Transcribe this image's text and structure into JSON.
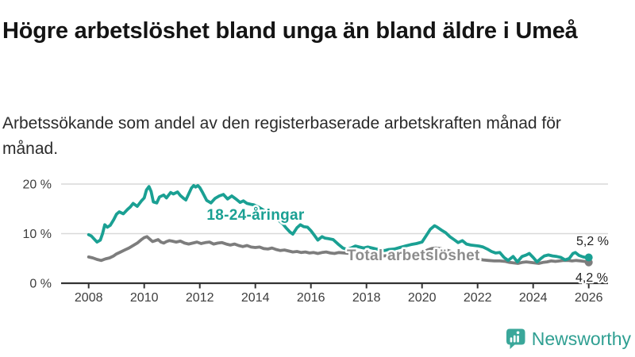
{
  "chart_data": {
    "type": "line",
    "title": "Högre arbetslöshet bland unga än bland äldre i Umeå",
    "subtitle": "Arbetssökande som andel av den registerbaserade arbetskraften månad för månad.",
    "unit": "percent",
    "grid": true,
    "legend_position": "inline-labels-on-lines",
    "x_axis": {
      "min": 2007.05,
      "max": 2026.6,
      "ticks": [
        2008,
        2010,
        2012,
        2014,
        2016,
        2018,
        2020,
        2022,
        2024,
        2026
      ]
    },
    "y_axis": {
      "min": 0,
      "max": 21.5,
      "ticks": [
        {
          "value": 20,
          "label": "20 %"
        },
        {
          "value": 10,
          "label": "10 %"
        },
        {
          "value": 0,
          "label": "0 %"
        }
      ]
    },
    "series": [
      {
        "id": "youth",
        "name": "18-24-åringar",
        "color": "#1aa093",
        "label_color": "#1aa093",
        "end_label": "5,2 %",
        "end_value": 5.2,
        "points": [
          [
            2008.0,
            9.8
          ],
          [
            2008.1,
            9.5
          ],
          [
            2008.2,
            8.9
          ],
          [
            2008.3,
            8.3
          ],
          [
            2008.42,
            8.7
          ],
          [
            2008.5,
            10.0
          ],
          [
            2008.58,
            11.8
          ],
          [
            2008.67,
            11.3
          ],
          [
            2008.78,
            11.7
          ],
          [
            2008.9,
            12.8
          ],
          [
            2009.0,
            13.9
          ],
          [
            2009.1,
            14.4
          ],
          [
            2009.25,
            14.0
          ],
          [
            2009.4,
            14.9
          ],
          [
            2009.5,
            15.4
          ],
          [
            2009.6,
            16.1
          ],
          [
            2009.75,
            15.5
          ],
          [
            2009.9,
            16.6
          ],
          [
            2010.0,
            17.2
          ],
          [
            2010.08,
            18.8
          ],
          [
            2010.17,
            19.5
          ],
          [
            2010.25,
            18.5
          ],
          [
            2010.33,
            16.4
          ],
          [
            2010.45,
            16.2
          ],
          [
            2010.55,
            17.4
          ],
          [
            2010.7,
            17.8
          ],
          [
            2010.8,
            17.2
          ],
          [
            2010.95,
            18.3
          ],
          [
            2011.05,
            18.0
          ],
          [
            2011.2,
            18.4
          ],
          [
            2011.3,
            17.7
          ],
          [
            2011.42,
            17.1
          ],
          [
            2011.5,
            16.8
          ],
          [
            2011.6,
            18.0
          ],
          [
            2011.7,
            19.2
          ],
          [
            2011.78,
            19.7
          ],
          [
            2011.85,
            19.4
          ],
          [
            2011.93,
            19.7
          ],
          [
            2012.0,
            19.3
          ],
          [
            2012.1,
            18.3
          ],
          [
            2012.25,
            16.7
          ],
          [
            2012.4,
            16.2
          ],
          [
            2012.55,
            17.1
          ],
          [
            2012.7,
            17.6
          ],
          [
            2012.85,
            17.9
          ],
          [
            2013.0,
            17.0
          ],
          [
            2013.15,
            17.6
          ],
          [
            2013.3,
            17.0
          ],
          [
            2013.45,
            16.3
          ],
          [
            2013.57,
            16.6
          ],
          [
            2013.7,
            16.1
          ],
          [
            2013.85,
            15.9
          ],
          [
            2013.95,
            15.8
          ],
          [
            2014.1,
            15.4
          ],
          [
            2014.25,
            14.9
          ],
          [
            2014.4,
            14.3
          ],
          [
            2014.52,
            13.9
          ],
          [
            2014.7,
            13.2
          ],
          [
            2014.86,
            12.6
          ],
          [
            2015.0,
            11.9
          ],
          [
            2015.1,
            11.2
          ],
          [
            2015.25,
            10.3
          ],
          [
            2015.35,
            9.9
          ],
          [
            2015.5,
            11.2
          ],
          [
            2015.62,
            11.8
          ],
          [
            2015.75,
            11.4
          ],
          [
            2015.88,
            11.3
          ],
          [
            2016.0,
            10.6
          ],
          [
            2016.12,
            9.7
          ],
          [
            2016.25,
            8.7
          ],
          [
            2016.4,
            9.4
          ],
          [
            2016.5,
            9.1
          ],
          [
            2016.62,
            9.0
          ],
          [
            2016.8,
            8.8
          ],
          [
            2017.0,
            7.8
          ],
          [
            2017.15,
            7.1
          ],
          [
            2017.3,
            6.8
          ],
          [
            2017.45,
            7.1
          ],
          [
            2017.6,
            7.5
          ],
          [
            2017.75,
            7.3
          ],
          [
            2017.9,
            7.1
          ],
          [
            2018.05,
            7.3
          ],
          [
            2018.2,
            7.1
          ],
          [
            2018.35,
            6.9
          ],
          [
            2018.5,
            6.7
          ],
          [
            2018.65,
            6.6
          ],
          [
            2018.8,
            6.8
          ],
          [
            2019.0,
            6.9
          ],
          [
            2019.2,
            7.2
          ],
          [
            2019.4,
            7.5
          ],
          [
            2019.6,
            7.8
          ],
          [
            2019.8,
            8.0
          ],
          [
            2020.0,
            8.3
          ],
          [
            2020.15,
            9.6
          ],
          [
            2020.3,
            10.9
          ],
          [
            2020.45,
            11.6
          ],
          [
            2020.55,
            11.3
          ],
          [
            2020.7,
            10.7
          ],
          [
            2020.85,
            10.2
          ],
          [
            2021.0,
            9.4
          ],
          [
            2021.15,
            8.8
          ],
          [
            2021.3,
            8.2
          ],
          [
            2021.45,
            8.6
          ],
          [
            2021.6,
            7.9
          ],
          [
            2021.75,
            7.7
          ],
          [
            2021.9,
            7.6
          ],
          [
            2022.05,
            7.5
          ],
          [
            2022.2,
            7.3
          ],
          [
            2022.35,
            6.9
          ],
          [
            2022.5,
            6.4
          ],
          [
            2022.65,
            6.1
          ],
          [
            2022.8,
            6.2
          ],
          [
            2022.95,
            5.2
          ],
          [
            2023.1,
            4.6
          ],
          [
            2023.28,
            5.4
          ],
          [
            2023.43,
            4.3
          ],
          [
            2023.6,
            5.4
          ],
          [
            2023.75,
            5.7
          ],
          [
            2023.86,
            6.0
          ],
          [
            2024.0,
            5.2
          ],
          [
            2024.14,
            4.3
          ],
          [
            2024.28,
            5.0
          ],
          [
            2024.4,
            5.5
          ],
          [
            2024.55,
            5.7
          ],
          [
            2024.7,
            5.5
          ],
          [
            2024.85,
            5.4
          ],
          [
            2025.0,
            5.2
          ],
          [
            2025.15,
            4.7
          ],
          [
            2025.3,
            5.0
          ],
          [
            2025.43,
            6.0
          ],
          [
            2025.52,
            6.2
          ],
          [
            2025.65,
            5.6
          ],
          [
            2025.8,
            5.3
          ],
          [
            2025.9,
            5.2
          ],
          [
            2026.0,
            5.2
          ]
        ]
      },
      {
        "id": "total",
        "name": "Total arbetslöshet",
        "color": "#7d7d7d",
        "label_color": "#8c8c8c",
        "end_label": "4,2 %",
        "end_value": 4.2,
        "points": [
          [
            2008.0,
            5.3
          ],
          [
            2008.15,
            5.1
          ],
          [
            2008.3,
            4.8
          ],
          [
            2008.45,
            4.6
          ],
          [
            2008.6,
            4.9
          ],
          [
            2008.75,
            5.1
          ],
          [
            2008.9,
            5.5
          ],
          [
            2009.0,
            5.9
          ],
          [
            2009.15,
            6.3
          ],
          [
            2009.3,
            6.7
          ],
          [
            2009.45,
            7.1
          ],
          [
            2009.6,
            7.6
          ],
          [
            2009.75,
            8.1
          ],
          [
            2009.9,
            8.8
          ],
          [
            2010.0,
            9.2
          ],
          [
            2010.1,
            9.4
          ],
          [
            2010.2,
            8.9
          ],
          [
            2010.3,
            8.4
          ],
          [
            2010.4,
            8.6
          ],
          [
            2010.5,
            8.8
          ],
          [
            2010.6,
            8.3
          ],
          [
            2010.7,
            8.1
          ],
          [
            2010.8,
            8.4
          ],
          [
            2010.9,
            8.6
          ],
          [
            2011.0,
            8.5
          ],
          [
            2011.15,
            8.3
          ],
          [
            2011.3,
            8.5
          ],
          [
            2011.45,
            8.1
          ],
          [
            2011.6,
            7.9
          ],
          [
            2011.75,
            8.1
          ],
          [
            2011.9,
            8.3
          ],
          [
            2012.05,
            8.0
          ],
          [
            2012.2,
            8.2
          ],
          [
            2012.35,
            8.3
          ],
          [
            2012.5,
            7.9
          ],
          [
            2012.65,
            8.1
          ],
          [
            2012.8,
            8.2
          ],
          [
            2012.95,
            7.9
          ],
          [
            2013.1,
            7.7
          ],
          [
            2013.25,
            7.9
          ],
          [
            2013.4,
            7.6
          ],
          [
            2013.55,
            7.4
          ],
          [
            2013.7,
            7.6
          ],
          [
            2013.85,
            7.3
          ],
          [
            2014.0,
            7.2
          ],
          [
            2014.15,
            7.3
          ],
          [
            2014.3,
            7.0
          ],
          [
            2014.45,
            6.9
          ],
          [
            2014.6,
            7.1
          ],
          [
            2014.75,
            6.8
          ],
          [
            2014.9,
            6.6
          ],
          [
            2015.05,
            6.7
          ],
          [
            2015.2,
            6.5
          ],
          [
            2015.35,
            6.3
          ],
          [
            2015.5,
            6.4
          ],
          [
            2015.65,
            6.2
          ],
          [
            2015.8,
            6.3
          ],
          [
            2015.95,
            6.1
          ],
          [
            2016.1,
            6.2
          ],
          [
            2016.25,
            6.0
          ],
          [
            2016.4,
            6.2
          ],
          [
            2016.55,
            6.3
          ],
          [
            2016.7,
            6.1
          ],
          [
            2016.85,
            6.0
          ],
          [
            2017.0,
            6.2
          ],
          [
            2017.2,
            6.1
          ],
          [
            2017.4,
            6.0
          ],
          [
            2017.6,
            5.9
          ],
          [
            2017.8,
            5.8
          ],
          [
            2018.0,
            5.9
          ],
          [
            2018.2,
            5.8
          ],
          [
            2018.4,
            5.6
          ],
          [
            2018.6,
            5.5
          ],
          [
            2018.8,
            5.6
          ],
          [
            2019.0,
            5.5
          ],
          [
            2019.2,
            5.6
          ],
          [
            2019.4,
            5.7
          ],
          [
            2019.6,
            5.8
          ],
          [
            2019.8,
            6.0
          ],
          [
            2020.0,
            6.2
          ],
          [
            2020.2,
            6.7
          ],
          [
            2020.35,
            7.0
          ],
          [
            2020.5,
            7.1
          ],
          [
            2020.65,
            7.0
          ],
          [
            2020.8,
            6.8
          ],
          [
            2021.0,
            6.5
          ],
          [
            2021.2,
            6.2
          ],
          [
            2021.4,
            5.9
          ],
          [
            2021.6,
            5.5
          ],
          [
            2021.8,
            5.2
          ],
          [
            2022.0,
            4.9
          ],
          [
            2022.2,
            4.7
          ],
          [
            2022.4,
            4.6
          ],
          [
            2022.6,
            4.5
          ],
          [
            2022.8,
            4.5
          ],
          [
            2023.0,
            4.4
          ],
          [
            2023.15,
            4.2
          ],
          [
            2023.3,
            4.1
          ],
          [
            2023.45,
            4.0
          ],
          [
            2023.6,
            4.2
          ],
          [
            2023.75,
            4.3
          ],
          [
            2023.9,
            4.2
          ],
          [
            2024.05,
            4.1
          ],
          [
            2024.2,
            4.0
          ],
          [
            2024.35,
            4.2
          ],
          [
            2024.5,
            4.3
          ],
          [
            2024.65,
            4.5
          ],
          [
            2024.8,
            4.4
          ],
          [
            2024.95,
            4.5
          ],
          [
            2025.1,
            4.6
          ],
          [
            2025.25,
            4.6
          ],
          [
            2025.4,
            4.5
          ],
          [
            2025.55,
            4.6
          ],
          [
            2025.7,
            4.5
          ],
          [
            2025.85,
            4.4
          ],
          [
            2026.0,
            4.2
          ]
        ]
      }
    ]
  },
  "colors": {
    "accent_teal": "#1aa093",
    "line_gray": "#7d7d7d",
    "axis": "#333333",
    "grid": "#d9d9d9",
    "tick_text": "#3d3d3d",
    "end_label_text": "#1f1f1f",
    "logo_teal": "#2f9f92"
  },
  "branding": {
    "name": "Newsworthy",
    "icon": "speech-bubble-bar-chart-icon"
  }
}
